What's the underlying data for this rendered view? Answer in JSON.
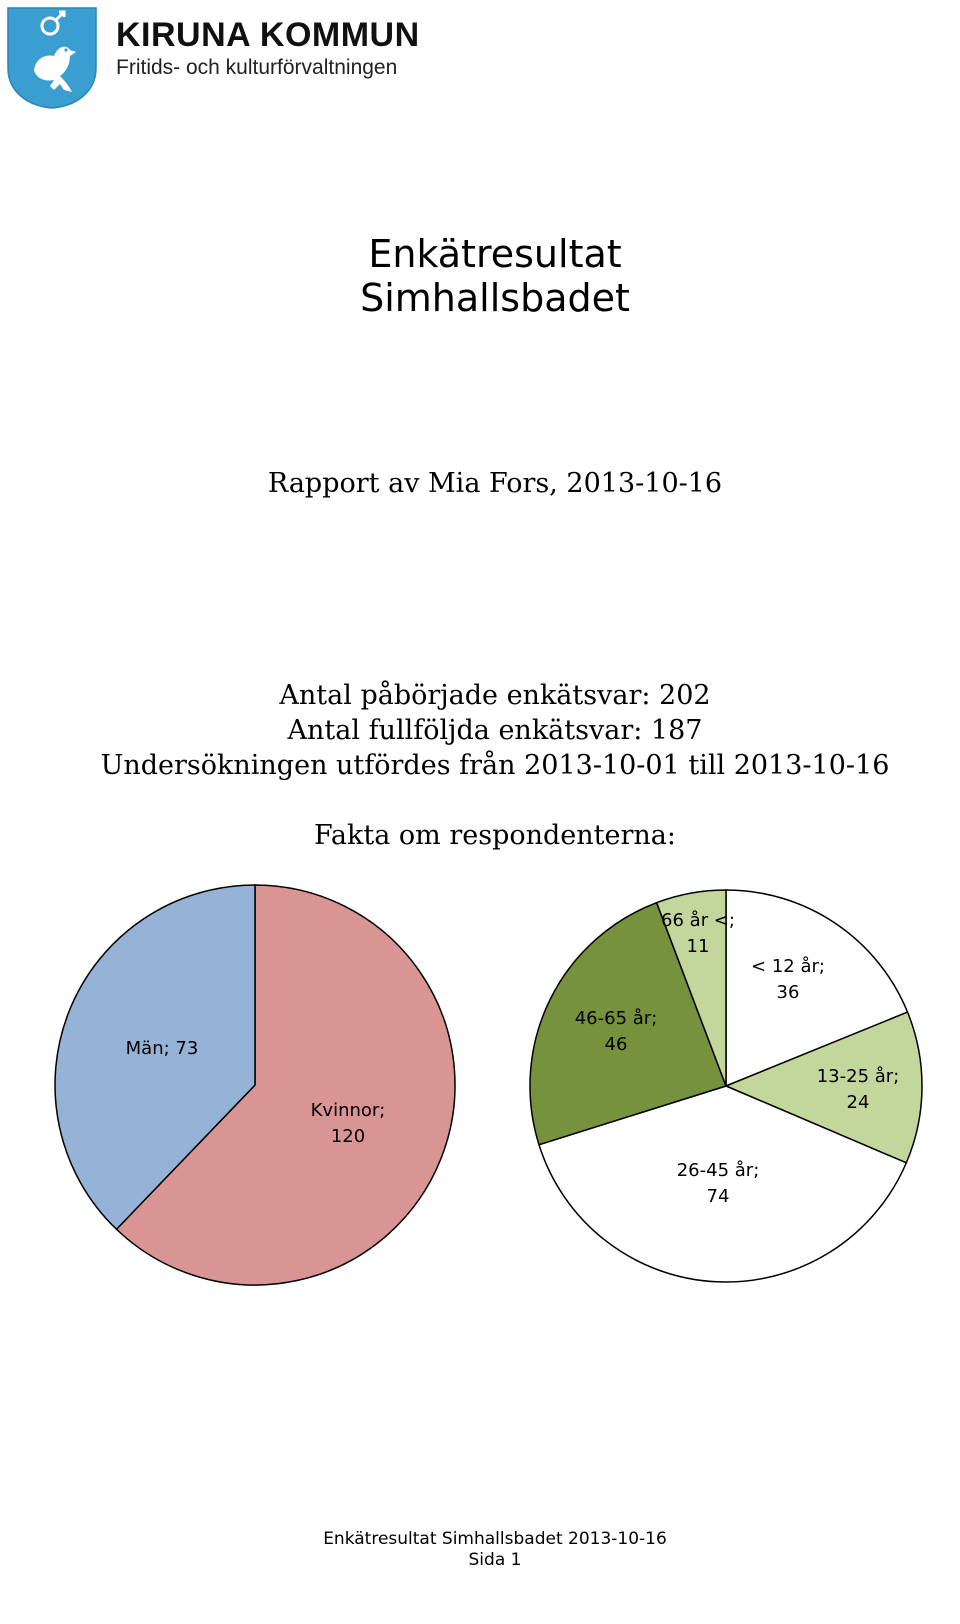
{
  "header": {
    "org_name": "KIRUNA KOMMUN",
    "department": "Fritids- och kulturförvaltningen",
    "logo_icon": "kiruna-coat-of-arms-ptarmigan-icon",
    "logo_color": "#3a9fd0"
  },
  "title": {
    "line1": "Enkätresultat",
    "line2": "Simhallsbadet"
  },
  "report_by": "Rapport av Mia Fors, 2013-10-16",
  "stats": {
    "started": "Antal påbörjade enkätsvar: 202",
    "completed": "Antal fullföljda enkätsvar: 187",
    "period": "Undersökningen utfördes från 2013-10-01 till 2013-10-16"
  },
  "facts_heading": "Fakta om respondenterna:",
  "chart_data": [
    {
      "type": "pie",
      "title": "",
      "slices": [
        {
          "label": "Kvinnor",
          "value": 120,
          "color": "#d99594",
          "data_label": [
            "Kvinnor;",
            "120"
          ]
        },
        {
          "label": "Män",
          "value": 73,
          "color": "#95b3d7",
          "data_label": [
            "Män; 73"
          ]
        }
      ]
    },
    {
      "type": "pie",
      "title": "",
      "slices": [
        {
          "label": "< 12 år",
          "value": 36,
          "color": "#ffffff",
          "data_label": [
            "< 12 år;",
            "36"
          ]
        },
        {
          "label": "13-25 år",
          "value": 24,
          "color": "#c3d69b",
          "data_label": [
            "13-25 år;",
            "24"
          ]
        },
        {
          "label": "26-45 år",
          "value": 74,
          "color": "#ffffff",
          "data_label": [
            "26-45 år;",
            "74"
          ]
        },
        {
          "label": "46-65 år",
          "value": 46,
          "color": "#76923c",
          "data_label": [
            "46-65 år;",
            "46"
          ]
        },
        {
          "label": "66 år <",
          "value": 11,
          "color": "#c3d69b",
          "data_label": [
            "66 år <;",
            "11"
          ]
        }
      ]
    }
  ],
  "footer": {
    "line1": "Enkätresultat Simhallsbadet 2013-10-16",
    "line2": "Sida 1"
  }
}
